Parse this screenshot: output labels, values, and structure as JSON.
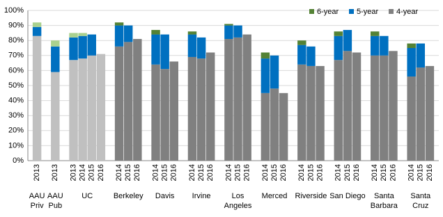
{
  "chart_data": {
    "type": "bar",
    "stacked": true,
    "groups": [
      {
        "label": [
          "AAU",
          "Priv"
        ],
        "categories": [
          "2013"
        ]
      },
      {
        "label": [
          "AAU",
          "Pub"
        ],
        "categories": [
          "2013"
        ]
      },
      {
        "label": [
          "UC"
        ],
        "categories": [
          "2013",
          "2014",
          "2015",
          "2016"
        ]
      },
      {
        "label": [
          "Berkeley"
        ],
        "categories": [
          "2014",
          "2015",
          "2016"
        ]
      },
      {
        "label": [
          "Davis"
        ],
        "categories": [
          "2014",
          "2015",
          "2016"
        ]
      },
      {
        "label": [
          "Irvine"
        ],
        "categories": [
          "2014",
          "2015",
          "2016"
        ]
      },
      {
        "label": [
          "Los",
          "Angeles"
        ],
        "categories": [
          "2014",
          "2015",
          "2016"
        ]
      },
      {
        "label": [
          "Merced"
        ],
        "categories": [
          "2014",
          "2015",
          "2016"
        ]
      },
      {
        "label": [
          "Riverside"
        ],
        "categories": [
          "2014",
          "2015",
          "2016"
        ]
      },
      {
        "label": [
          "San Diego"
        ],
        "categories": [
          "2014",
          "2015",
          "2016"
        ]
      },
      {
        "label": [
          "Santa",
          "Barbara"
        ],
        "categories": [
          "2014",
          "2015",
          "2016"
        ]
      },
      {
        "label": [
          "Santa",
          "Cruz"
        ],
        "categories": [
          "2014",
          "2015",
          "2016"
        ]
      }
    ],
    "series": [
      {
        "name": "4-year",
        "color": "#808080",
        "light_color": "#c0c0c0",
        "values": [
          83,
          59,
          67,
          68,
          70,
          71,
          76,
          79,
          81,
          64,
          61,
          66,
          69,
          68,
          72,
          81,
          82,
          84,
          45,
          48,
          45,
          64,
          63,
          63,
          67,
          73,
          72,
          70,
          70,
          73,
          56,
          62,
          63
        ]
      },
      {
        "name": "5-year",
        "color": "#0070c0",
        "light_color": "#0070c0",
        "values": [
          6,
          17,
          15,
          15,
          14,
          null,
          14,
          11,
          null,
          20,
          23,
          null,
          15,
          14,
          null,
          9,
          8,
          null,
          23,
          22,
          null,
          13,
          13,
          null,
          16,
          14,
          null,
          13,
          13,
          null,
          19,
          16,
          null
        ]
      },
      {
        "name": "6-year",
        "color": "#548235",
        "light_color": "#a9d18e",
        "values": [
          3,
          4,
          3,
          2,
          null,
          null,
          2,
          null,
          null,
          3,
          null,
          null,
          2,
          null,
          null,
          1,
          null,
          null,
          4,
          null,
          null,
          3,
          null,
          null,
          3,
          null,
          null,
          3,
          null,
          null,
          3,
          null,
          null
        ]
      }
    ],
    "light_groups": 3,
    "ylim": [
      0,
      100
    ],
    "yticks": [
      {
        "value": 0,
        "label": "0%"
      },
      {
        "value": 10,
        "label": "10%"
      },
      {
        "value": 20,
        "label": "20%"
      },
      {
        "value": 30,
        "label": "30%"
      },
      {
        "value": 40,
        "label": "40%"
      },
      {
        "value": 50,
        "label": "50%"
      },
      {
        "value": 60,
        "label": "60%"
      },
      {
        "value": 70,
        "label": "70%"
      },
      {
        "value": 80,
        "label": "80%"
      },
      {
        "value": 90,
        "label": "90%"
      },
      {
        "value": 100,
        "label": "100%"
      }
    ],
    "grid": true,
    "legend": "top-right"
  }
}
